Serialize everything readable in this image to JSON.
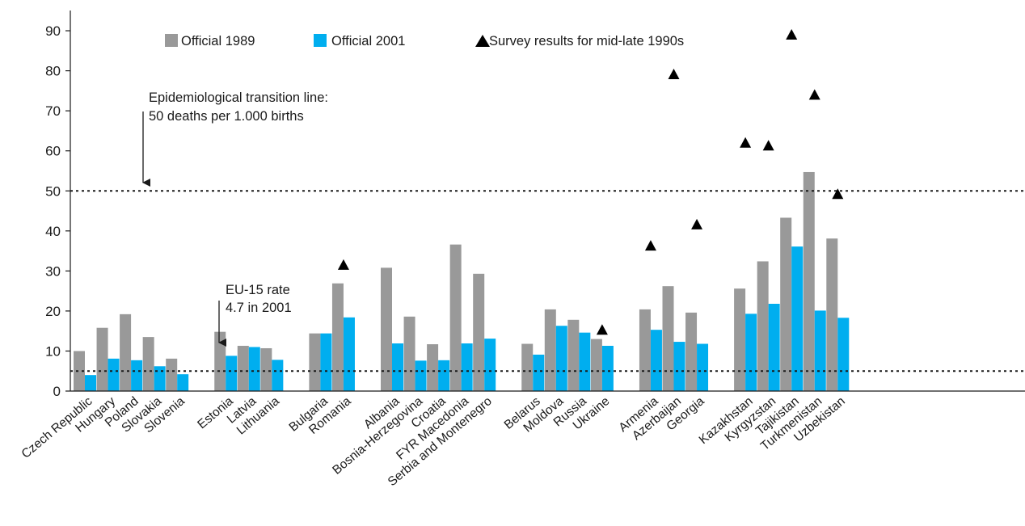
{
  "chart_data": {
    "type": "bar",
    "title": "",
    "xlabel": "",
    "ylabel": "",
    "ylim": [
      0,
      90
    ],
    "yticks": [
      "0",
      "10",
      "20",
      "30",
      "40",
      "50",
      "60",
      "70",
      "80",
      "90"
    ],
    "grid": false,
    "legend_position": "top",
    "categories": [
      "Czech Republic",
      "Hungary",
      "Poland",
      "Slovakia",
      "Slovenia",
      "Estonia",
      "Latvia",
      "Lithuania",
      "Bulgaria",
      "Romania",
      "Albania",
      "Bosnia-Herzegovina",
      "Croatia",
      "FYR Macedonia",
      "Serbia and Montenegro",
      "Belarus",
      "Moldova",
      "Russia",
      "Ukraine",
      "Armenia",
      "Azerbaijan",
      "Georgia",
      "Kazakhstan",
      "Kyrgyzstan",
      "Tajikistan",
      "Turkmenistan",
      "Uzbekistan"
    ],
    "groups": [
      5,
      3,
      2,
      5,
      4,
      3,
      5
    ],
    "series": [
      {
        "name": "Official 1989",
        "kind": "bar",
        "color": "#999999",
        "values": [
          10,
          15.8,
          19.2,
          13.5,
          8.1,
          14.8,
          11.3,
          10.7,
          14.4,
          26.9,
          30.8,
          18.6,
          11.7,
          36.6,
          29.3,
          11.8,
          20.4,
          17.8,
          13.0,
          20.4,
          26.2,
          19.6,
          25.6,
          32.4,
          43.3,
          54.7,
          38.1
        ]
      },
      {
        "name": "Official 2001",
        "kind": "bar",
        "color": "#00aeef",
        "values": [
          4.0,
          8.1,
          7.7,
          6.2,
          4.2,
          8.8,
          11.0,
          7.8,
          14.4,
          18.4,
          11.9,
          7.6,
          7.7,
          11.9,
          13.1,
          9.1,
          16.3,
          14.6,
          11.3,
          15.3,
          12.3,
          11.8,
          19.3,
          21.8,
          36.1,
          20.1,
          18.3
        ]
      },
      {
        "name": "Survey results for mid-late 1990s",
        "kind": "marker",
        "color": "#000000",
        "points": [
          {
            "category": "Romania",
            "value": 31.5
          },
          {
            "category": "Ukraine",
            "value": 15.3
          },
          {
            "category": "Armenia",
            "value": 36.3
          },
          {
            "category": "Azerbaijan",
            "value": 79.1
          },
          {
            "category": "Georgia",
            "value": 41.6
          },
          {
            "category": "Kazakhstan",
            "value": 62.0
          },
          {
            "category": "Kyrgyzstan",
            "value": 61.3
          },
          {
            "category": "Tajikistan",
            "value": 89.0
          },
          {
            "category": "Turkmenistan",
            "value": 74.0
          },
          {
            "category": "Uzbekistan",
            "value": 49.2
          }
        ]
      }
    ],
    "reference_lines": [
      {
        "value": 50,
        "style": "dotted"
      },
      {
        "value": 5,
        "style": "dotted"
      }
    ],
    "annotations": [
      {
        "lines": [
          "Epidemiological transition line:",
          "50 deaths per 1.000 births"
        ],
        "arrow": "down"
      },
      {
        "lines": [
          "EU-15 rate",
          "4.7 in 2001"
        ],
        "arrow": "down"
      }
    ]
  }
}
